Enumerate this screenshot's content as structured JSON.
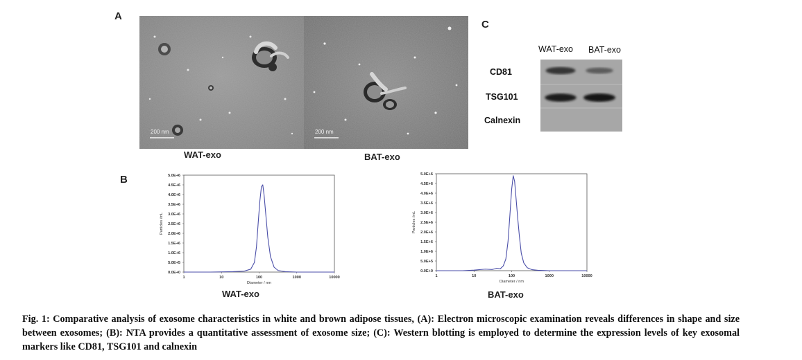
{
  "panels": {
    "a_letter": "A",
    "b_letter": "B",
    "c_letter": "C"
  },
  "em_images": [
    {
      "label": "WAT-exo",
      "scale_bar": "200 nm"
    },
    {
      "label": "BAT-exo",
      "scale_bar": "200 nm"
    }
  ],
  "western_blot": {
    "columns": [
      "WAT-exo",
      "BAT-exo"
    ],
    "rows": [
      "CD81",
      "TSG101",
      "Calnexin"
    ],
    "band_intensity": {
      "CD81": [
        0.75,
        0.45
      ],
      "TSG101": [
        0.95,
        1.0
      ],
      "Calnexin": [
        0.0,
        0.0
      ]
    }
  },
  "chart_data": [
    {
      "type": "line",
      "label": "WAT-exo",
      "xlabel": "Diameter / nm",
      "ylabel": "Particles /mL",
      "x_scale": "log",
      "xlim": [
        1,
        10000
      ],
      "ylim": [
        0,
        5000000
      ],
      "x_ticks": [
        "1",
        "10",
        "100",
        "1000",
        "10000"
      ],
      "y_ticks": [
        "0.0E+0",
        "5.0E+5",
        "1.0E+6",
        "1.5E+6",
        "2.0E+6",
        "2.5E+6",
        "3.0E+6",
        "3.5E+6",
        "4.0E+6",
        "4.5E+6",
        "5.0E+6"
      ],
      "series": [
        {
          "x": [
            1,
            5,
            20,
            40,
            60,
            75,
            85,
            95,
            105,
            115,
            125,
            135,
            150,
            170,
            200,
            250,
            320,
            500,
            1000,
            3000,
            10000
          ],
          "y": [
            0,
            0,
            20000,
            50000,
            150000,
            500000,
            1300000,
            2600000,
            3700000,
            4400000,
            4500000,
            4000000,
            3000000,
            1800000,
            800000,
            250000,
            80000,
            20000,
            0,
            0,
            0
          ]
        }
      ]
    },
    {
      "type": "line",
      "label": "BAT-exo",
      "xlabel": "Diameter / nm",
      "ylabel": "Particles /mL",
      "x_scale": "log",
      "xlim": [
        1,
        10000
      ],
      "ylim": [
        0,
        5000000
      ],
      "x_ticks": [
        "1",
        "10",
        "100",
        "1000",
        "10000"
      ],
      "y_ticks": [
        "0.0E+0",
        "5.0E+5",
        "1.0E+6",
        "1.5E+6",
        "2.0E+6",
        "2.5E+6",
        "3.0E+6",
        "3.5E+6",
        "4.0E+6",
        "4.5E+6",
        "5.0E+6"
      ],
      "series": [
        {
          "x": [
            1,
            5,
            10,
            20,
            30,
            40,
            50,
            60,
            70,
            80,
            90,
            100,
            110,
            120,
            130,
            145,
            160,
            180,
            210,
            260,
            350,
            500,
            1000,
            3000,
            10000
          ],
          "y": [
            0,
            0,
            30000,
            80000,
            60000,
            120000,
            100000,
            250000,
            600000,
            1500000,
            2900000,
            4200000,
            4900000,
            4600000,
            3800000,
            2700000,
            1800000,
            900000,
            400000,
            150000,
            50000,
            20000,
            0,
            0,
            0
          ]
        }
      ]
    }
  ],
  "caption": "Fig. 1: Comparative analysis of exosome characteristics in white and brown adipose tissues, (A): Electron microscopic examination reveals differences in shape and size between exosomes; (B): NTA provides a quantitative assessment of exosome size; (C): Western blotting is employed to determine the expression levels of key exosomal markers like CD81, TSG101 and calnexin"
}
